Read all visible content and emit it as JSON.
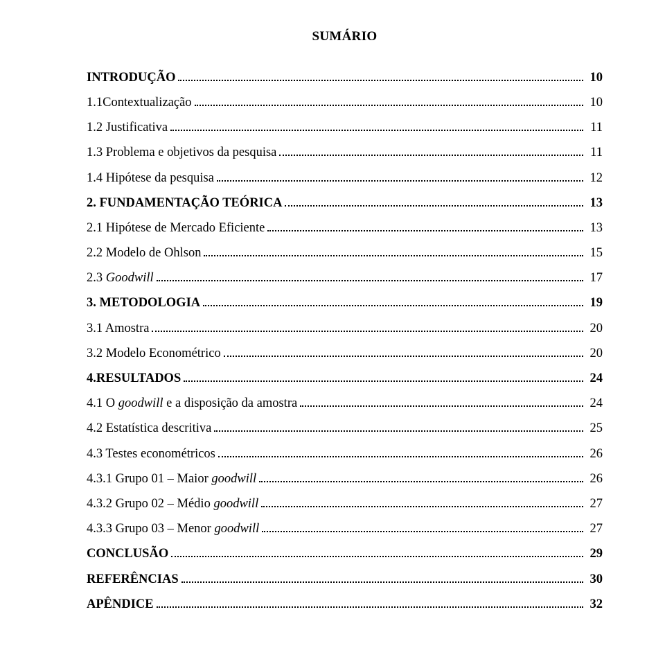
{
  "title": "SUMÁRIO",
  "entries": [
    {
      "label": "INTRODUÇÃO",
      "page": "10",
      "bold": true,
      "level": 0,
      "italic": false
    },
    {
      "label": "1.1Contextualização",
      "page": "10",
      "bold": false,
      "level": 1,
      "italic": false
    },
    {
      "label": "1.2 Justificativa",
      "page": "11",
      "bold": false,
      "level": 1,
      "italic": false
    },
    {
      "label": "1.3 Problema e objetivos da pesquisa",
      "page": "11",
      "bold": false,
      "level": 1,
      "italic": false
    },
    {
      "label": "1.4 Hipótese da pesquisa",
      "page": "12",
      "bold": false,
      "level": 1,
      "italic": false
    },
    {
      "label": "2. FUNDAMENTAÇÃO TEÓRICA",
      "page": "13",
      "bold": true,
      "level": 0,
      "italic": false
    },
    {
      "label": "2.1 Hipótese de Mercado Eficiente",
      "page": "13",
      "bold": false,
      "level": 1,
      "italic": false
    },
    {
      "label": "2.2 Modelo de Ohlson",
      "page": "15",
      "bold": false,
      "level": 1,
      "italic": false
    },
    {
      "label": "2.3 Goodwill",
      "page": "17",
      "bold": false,
      "level": 1,
      "italic": true,
      "italic_word": "Goodwill",
      "prefix": "2.3 "
    },
    {
      "label": "3. METODOLOGIA",
      "page": "19",
      "bold": true,
      "level": 0,
      "italic": false
    },
    {
      "label": "3.1 Amostra",
      "page": "20",
      "bold": false,
      "level": 1,
      "italic": false
    },
    {
      "label": "3.2 Modelo Econométrico",
      "page": "20",
      "bold": false,
      "level": 1,
      "italic": false
    },
    {
      "label": "4.RESULTADOS",
      "page": "24",
      "bold": true,
      "level": 0,
      "italic": false
    },
    {
      "label": "4.1 O goodwill e a disposição da amostra",
      "page": "24",
      "bold": false,
      "level": 1,
      "italic": true,
      "italic_word": "goodwill",
      "prefix": "4.1 O ",
      "suffix": " e a disposição da amostra"
    },
    {
      "label": "4.2 Estatística descritiva",
      "page": "25",
      "bold": false,
      "level": 1,
      "italic": false
    },
    {
      "label": "4.3 Testes econométricos",
      "page": "26",
      "bold": false,
      "level": 1,
      "italic": false
    },
    {
      "label": "4.3.1 Grupo 01 – Maior goodwill",
      "page": "26",
      "bold": false,
      "level": 2,
      "italic": true,
      "italic_word": "goodwill",
      "prefix": "4.3.1 Grupo 01 – Maior "
    },
    {
      "label": "4.3.2 Grupo 02 – Médio goodwill",
      "page": "27",
      "bold": false,
      "level": 2,
      "italic": true,
      "italic_word": "goodwill",
      "prefix": "4.3.2 Grupo 02 – Médio "
    },
    {
      "label": "4.3.3 Grupo 03 – Menor goodwill",
      "page": "27",
      "bold": false,
      "level": 2,
      "italic": true,
      "italic_word": "goodwill",
      "prefix": "4.3.3 Grupo 03 – Menor "
    },
    {
      "label": "CONCLUSÃO",
      "page": "29",
      "bold": true,
      "level": 0,
      "italic": false
    },
    {
      "label": "REFERÊNCIAS",
      "page": "30",
      "bold": true,
      "level": 0,
      "italic": false
    },
    {
      "label": "APÊNDICE",
      "page": "32",
      "bold": true,
      "level": 0,
      "italic": false
    }
  ]
}
